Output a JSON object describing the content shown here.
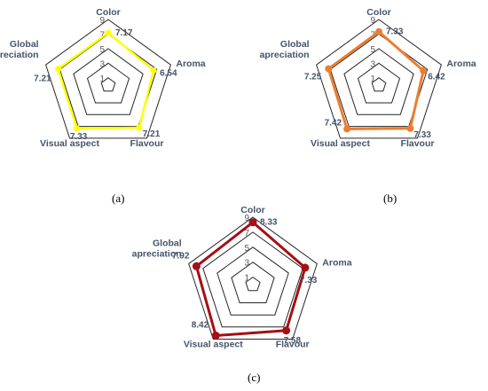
{
  "chart_data": [
    {
      "type": "radar",
      "panel_label": "(a)",
      "axes": [
        "Color",
        "Aroma",
        "Flavour",
        "Visual aspect",
        "Global\napreciation"
      ],
      "values": [
        7.17,
        6.54,
        7.21,
        7.33,
        7.21
      ],
      "value_labels": [
        "7.17",
        "6.54",
        "7.21",
        "7.33",
        "7.21"
      ],
      "rlim": [
        0,
        9
      ],
      "ticks": [
        "1",
        "3",
        "5",
        "7",
        "9"
      ],
      "color": "#ffff00"
    },
    {
      "type": "radar",
      "panel_label": "(b)",
      "axes": [
        "Color",
        "Aroma",
        "Flavour",
        "Visual aspect",
        "Global\napreciation"
      ],
      "values": [
        7.33,
        6.42,
        7.33,
        7.42,
        7.25
      ],
      "value_labels": [
        "7.33",
        "6.42",
        "7.33",
        "7.42",
        "7.25"
      ],
      "rlim": [
        0,
        9
      ],
      "ticks": [
        "1",
        "3",
        "5",
        "7",
        "9"
      ],
      "color": "#ed7d31"
    },
    {
      "type": "radar",
      "panel_label": "(c)",
      "axes": [
        "Color",
        "Aroma",
        "Flavour",
        "Visual aspect",
        "Global\napreciation"
      ],
      "values": [
        8.33,
        7.33,
        7.58,
        8.42,
        7.92
      ],
      "value_labels": [
        "8.33",
        "7.33",
        "7.58",
        "8.42",
        "7.92"
      ],
      "rlim": [
        0,
        9
      ],
      "ticks": [
        "1",
        "3",
        "5",
        "7",
        "9"
      ],
      "color": "#a50f15"
    }
  ]
}
